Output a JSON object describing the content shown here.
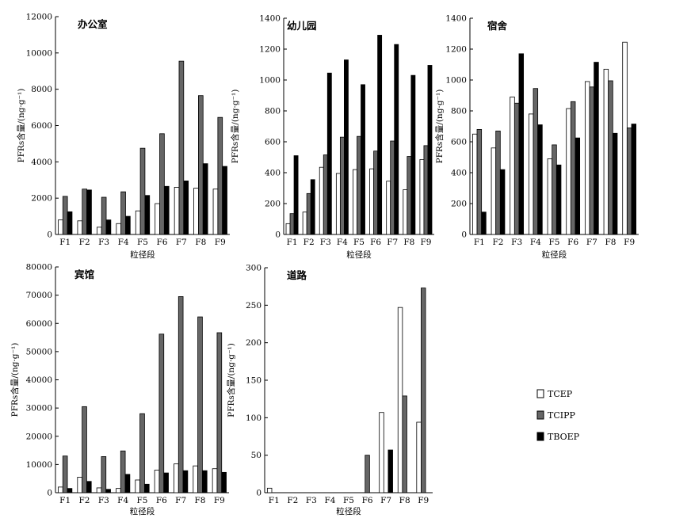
{
  "chart_data": [
    {
      "type": "bar",
      "title": "办公室",
      "xlabel": "粒径段",
      "ylabel": "PFRs含量/(ng·g⁻¹)",
      "categories": [
        "F1",
        "F2",
        "F3",
        "F4",
        "F5",
        "F6",
        "F7",
        "F8",
        "F9"
      ],
      "ylim": [
        0,
        12000
      ],
      "yticks": [
        0,
        2000,
        4000,
        6000,
        8000,
        10000,
        12000
      ],
      "series": [
        {
          "name": "TCEP",
          "values": [
            800,
            750,
            400,
            600,
            1300,
            1700,
            2600,
            2550,
            2500
          ]
        },
        {
          "name": "TCIPP",
          "values": [
            2100,
            2500,
            2050,
            2350,
            4750,
            5550,
            9550,
            7650,
            6450
          ]
        },
        {
          "name": "TBOEP",
          "values": [
            1250,
            2450,
            800,
            1000,
            2150,
            2650,
            2950,
            3900,
            3750
          ]
        }
      ]
    },
    {
      "type": "bar",
      "title": "幼儿园",
      "xlabel": "粒径段",
      "ylabel": "PFRs含量/(ng·g⁻¹)",
      "categories": [
        "F1",
        "F2",
        "F3",
        "F4",
        "F5",
        "F6",
        "F7",
        "F8",
        "F9"
      ],
      "ylim": [
        0,
        1400
      ],
      "yticks": [
        0,
        200,
        400,
        600,
        800,
        1000,
        1200,
        1400
      ],
      "series": [
        {
          "name": "TCEP",
          "values": [
            70,
            145,
            435,
            395,
            420,
            425,
            345,
            290,
            485
          ]
        },
        {
          "name": "TCIPP",
          "values": [
            135,
            265,
            515,
            630,
            635,
            540,
            605,
            505,
            575
          ]
        },
        {
          "name": "TBOEP",
          "values": [
            510,
            355,
            1045,
            1130,
            970,
            1290,
            1230,
            1030,
            1095
          ]
        }
      ]
    },
    {
      "type": "bar",
      "title": "宿舍",
      "xlabel": "粒径段",
      "ylabel": "PFRs含量/(ng·g⁻¹)",
      "categories": [
        "F1",
        "F2",
        "F3",
        "F4",
        "F5",
        "F6",
        "F7",
        "F8",
        "F9"
      ],
      "ylim": [
        0,
        1400
      ],
      "yticks": [
        0,
        200,
        400,
        600,
        800,
        1000,
        1200,
        1400
      ],
      "series": [
        {
          "name": "TCEP",
          "values": [
            650,
            560,
            890,
            780,
            490,
            815,
            990,
            1070,
            1245
          ]
        },
        {
          "name": "TCIPP",
          "values": [
            680,
            670,
            850,
            945,
            580,
            860,
            955,
            995,
            690
          ]
        },
        {
          "name": "TBOEP",
          "values": [
            145,
            420,
            1170,
            710,
            450,
            625,
            1115,
            655,
            715
          ]
        }
      ]
    },
    {
      "type": "bar",
      "title": "宾馆",
      "xlabel": "粒径段",
      "ylabel": "PFRs含量/(ng·g⁻¹)",
      "categories": [
        "F1",
        "F2",
        "F3",
        "F4",
        "F5",
        "F6",
        "F7",
        "F8",
        "F9"
      ],
      "ylim": [
        0,
        80000
      ],
      "yticks": [
        0,
        10000,
        20000,
        30000,
        40000,
        50000,
        60000,
        70000,
        80000
      ],
      "series": [
        {
          "name": "TCEP",
          "values": [
            2000,
            5500,
            1700,
            1500,
            4500,
            8000,
            10200,
            9500,
            8500
          ]
        },
        {
          "name": "TCIPP",
          "values": [
            13000,
            30500,
            12800,
            14800,
            28000,
            56200,
            69500,
            62300,
            56700
          ]
        },
        {
          "name": "TBOEP",
          "values": [
            1500,
            4000,
            1200,
            6500,
            3000,
            7000,
            7800,
            7800,
            7200
          ]
        }
      ]
    },
    {
      "type": "bar",
      "title": "道路",
      "xlabel": "粒径段",
      "ylabel": "PFRs含量/(ng·g⁻¹)",
      "categories": [
        "F1",
        "F2",
        "F3",
        "F4",
        "F5",
        "F6",
        "F7",
        "F8",
        "F9"
      ],
      "ylim": [
        0,
        300
      ],
      "yticks": [
        0,
        50,
        100,
        150,
        200,
        250,
        300
      ],
      "series": [
        {
          "name": "TCEP",
          "values": [
            6,
            0,
            0,
            0,
            0,
            0,
            107,
            247,
            94
          ]
        },
        {
          "name": "TCIPP",
          "values": [
            0,
            0,
            0,
            0,
            0,
            50,
            0,
            129,
            273
          ]
        },
        {
          "name": "TBOEP",
          "values": [
            0,
            0,
            0,
            0,
            0,
            0,
            57,
            0,
            0
          ]
        }
      ]
    }
  ],
  "legend": [
    {
      "name": "TCEP",
      "color": "#ffffff"
    },
    {
      "name": "TCIPP",
      "color": "#666666"
    },
    {
      "name": "TBOEP",
      "color": "#000000"
    }
  ],
  "colors": {
    "TCEP": "#ffffff",
    "TCIPP": "#666666",
    "TBOEP": "#000000",
    "axis": "#000000"
  }
}
